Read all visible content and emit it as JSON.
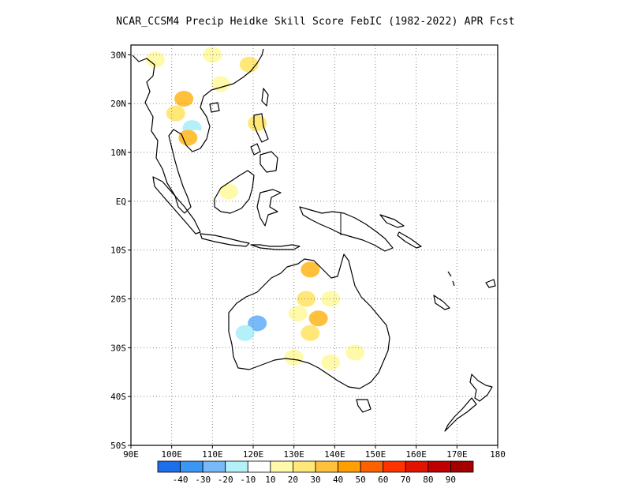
{
  "title": "NCAR_CCSM4 Precip Heidke Skill Score FebIC (1982-2022) APR Fcst",
  "map": {
    "lon_range": [
      90,
      180
    ],
    "lat_range": [
      -50,
      32
    ],
    "lat_ticks": [
      {
        "value": 30,
        "label": "30N"
      },
      {
        "value": 20,
        "label": "20N"
      },
      {
        "value": 10,
        "label": "10N"
      },
      {
        "value": 0,
        "label": "EQ"
      },
      {
        "value": -10,
        "label": "10S"
      },
      {
        "value": -20,
        "label": "20S"
      },
      {
        "value": -30,
        "label": "30S"
      },
      {
        "value": -40,
        "label": "40S"
      },
      {
        "value": -50,
        "label": "50S"
      }
    ],
    "lon_ticks": [
      {
        "value": 90,
        "label": "90E"
      },
      {
        "value": 100,
        "label": "100E"
      },
      {
        "value": 110,
        "label": "110E"
      },
      {
        "value": 120,
        "label": "120E"
      },
      {
        "value": 130,
        "label": "130E"
      },
      {
        "value": 140,
        "label": "140E"
      },
      {
        "value": 150,
        "label": "150E"
      },
      {
        "value": 160,
        "label": "160E"
      },
      {
        "value": 170,
        "label": "170E"
      },
      {
        "value": 180,
        "label": "180"
      }
    ],
    "grid": "dotted"
  },
  "colorbar": {
    "colors": [
      "#1e6eeb",
      "#3c96f5",
      "#78b9fa",
      "#b4f0fa",
      "#ffffff",
      "#fffaaa",
      "#ffe878",
      "#ffc03c",
      "#ffa000",
      "#ff6000",
      "#ff3200",
      "#e11400",
      "#c00000",
      "#a50000"
    ],
    "labels": [
      "-40",
      "-30",
      "-20",
      "-10",
      "10",
      "20",
      "30",
      "40",
      "50",
      "60",
      "70",
      "80",
      "90"
    ]
  },
  "skill_patches": [
    {
      "lon": 103,
      "lat": 21,
      "score": 35
    },
    {
      "lon": 101,
      "lat": 18,
      "score": 25
    },
    {
      "lon": 105,
      "lat": 15,
      "score": -20
    },
    {
      "lon": 106,
      "lat": 13,
      "score": -10
    },
    {
      "lon": 104,
      "lat": 13,
      "score": 30
    },
    {
      "lon": 110,
      "lat": 30,
      "score": 15
    },
    {
      "lon": 113,
      "lat": 27,
      "score": -10
    },
    {
      "lon": 119,
      "lat": 28,
      "score": 20
    },
    {
      "lon": 96,
      "lat": 29,
      "score": 15
    },
    {
      "lon": 112,
      "lat": 24,
      "score": 15
    },
    {
      "lon": 121,
      "lat": 16,
      "score": 25
    },
    {
      "lon": 114,
      "lat": 2,
      "score": 15
    },
    {
      "lon": 125,
      "lat": -3,
      "score": -10
    },
    {
      "lon": 134,
      "lat": -14,
      "score": 35
    },
    {
      "lon": 133,
      "lat": -20,
      "score": 20
    },
    {
      "lon": 136,
      "lat": -24,
      "score": 30
    },
    {
      "lon": 134,
      "lat": -27,
      "score": 25
    },
    {
      "lon": 139,
      "lat": -20,
      "score": 15
    },
    {
      "lon": 131,
      "lat": -23,
      "score": 15
    },
    {
      "lon": 121,
      "lat": -25,
      "score": -30
    },
    {
      "lon": 118,
      "lat": -27,
      "score": -20
    },
    {
      "lon": 120,
      "lat": -30,
      "score": -10
    },
    {
      "lon": 127,
      "lat": -30,
      "score": -10
    },
    {
      "lon": 141,
      "lat": -28,
      "score": -10
    },
    {
      "lon": 145,
      "lat": -31,
      "score": 15
    },
    {
      "lon": 139,
      "lat": -33,
      "score": 15
    },
    {
      "lon": 130,
      "lat": -32,
      "score": 15
    },
    {
      "lon": 143,
      "lat": -15,
      "score": -10
    }
  ]
}
